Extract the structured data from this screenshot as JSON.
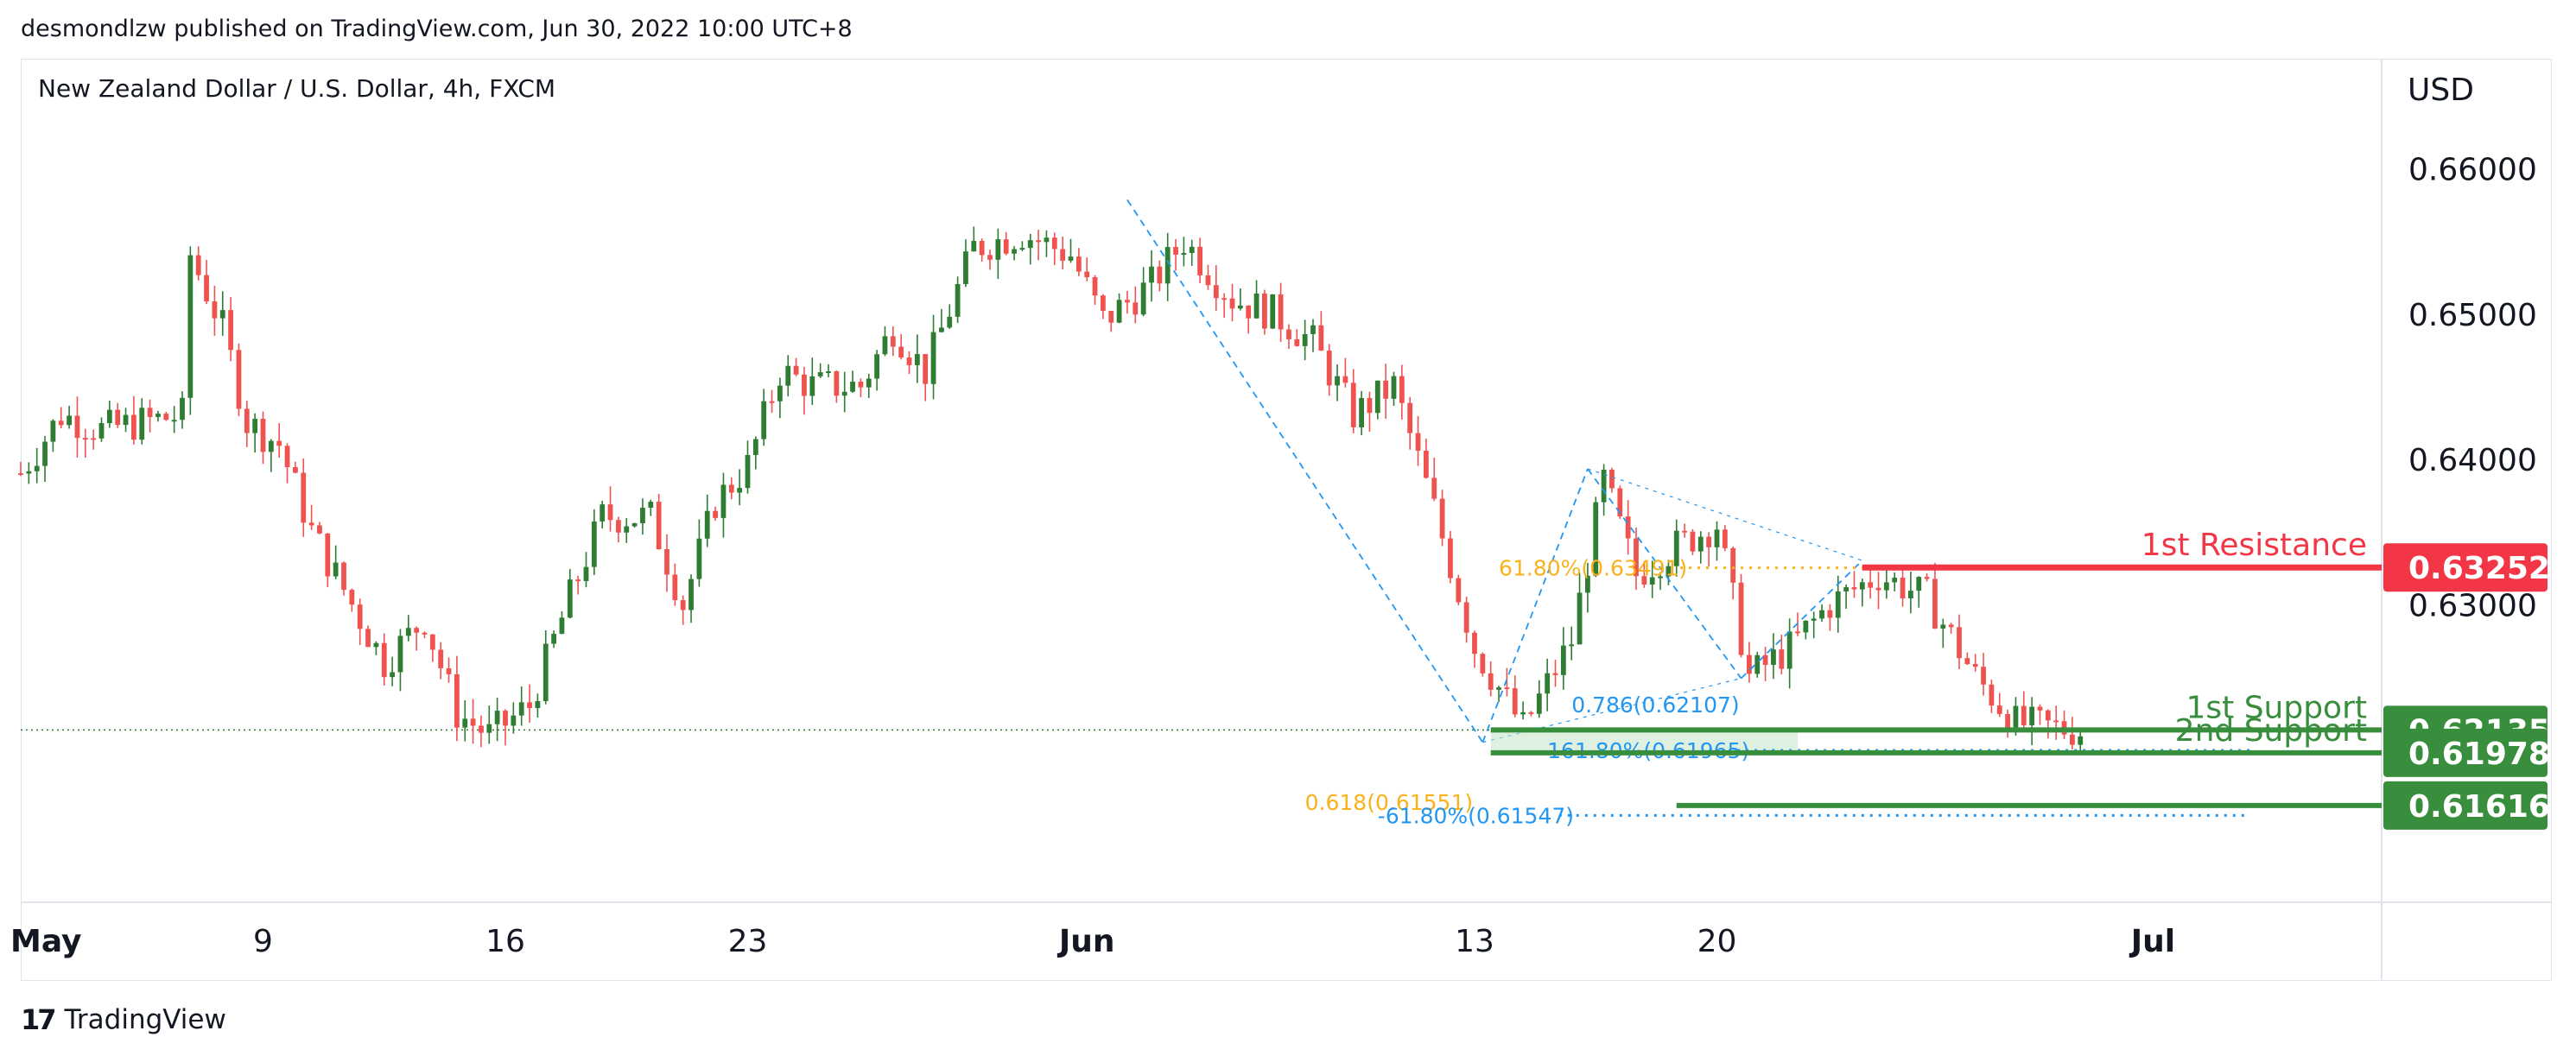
{
  "header": {
    "attribution": "desmondlzw published on TradingView.com, Jun 30, 2022 10:00 UTC+8",
    "symbol": "New Zealand Dollar / U.S. Dollar, 4h, FXCM",
    "currency": "USD"
  },
  "footer": {
    "brand_mark": "17",
    "brand": "TradingView"
  },
  "colors": {
    "bull": "#2e7d32",
    "bear": "#ef5350",
    "resistance": "#f23645",
    "support": "#388e3c",
    "fib_blue": "#2196f3",
    "fib_gold": "#f9b21c",
    "axis_text": "#131722"
  },
  "chart_data": {
    "type": "candlestick",
    "ylim": [
      0.6095,
      0.6675
    ],
    "y_ticks": [
      0.66,
      0.65,
      0.64,
      0.63
    ],
    "y_tick_labels": [
      "0.66000",
      "0.65000",
      "0.64000",
      "0.63000"
    ],
    "x_ticks": [
      {
        "label": "May",
        "candle": 0
      },
      {
        "label": "9",
        "candle": 30
      },
      {
        "label": "16",
        "candle": 60
      },
      {
        "label": "23",
        "candle": 90
      },
      {
        "label": "Jun",
        "candle": 132
      },
      {
        "label": "13",
        "candle": 180
      },
      {
        "label": "20",
        "candle": 210
      },
      {
        "label": "Jul",
        "candle": 264
      }
    ],
    "candle_count": 296,
    "path": [
      [
        0,
        0.639
      ],
      [
        5,
        0.643
      ],
      [
        10,
        0.642
      ],
      [
        15,
        0.6425
      ],
      [
        20,
        0.643
      ],
      [
        21,
        0.654
      ],
      [
        25,
        0.649
      ],
      [
        28,
        0.6425
      ],
      [
        32,
        0.641
      ],
      [
        36,
        0.635
      ],
      [
        41,
        0.63
      ],
      [
        45,
        0.626
      ],
      [
        50,
        0.629
      ],
      [
        54,
        0.6225
      ],
      [
        58,
        0.621
      ],
      [
        63,
        0.623
      ],
      [
        68,
        0.6305
      ],
      [
        72,
        0.636
      ],
      [
        78,
        0.636
      ],
      [
        82,
        0.63
      ],
      [
        86,
        0.637
      ],
      [
        90,
        0.6395
      ],
      [
        94,
        0.646
      ],
      [
        98,
        0.645
      ],
      [
        104,
        0.645
      ],
      [
        108,
        0.649
      ],
      [
        112,
        0.646
      ],
      [
        118,
        0.6545
      ],
      [
        124,
        0.6555
      ],
      [
        130,
        0.654
      ],
      [
        134,
        0.6495
      ],
      [
        140,
        0.652
      ],
      [
        144,
        0.655
      ],
      [
        150,
        0.651
      ],
      [
        155,
        0.65
      ],
      [
        160,
        0.648
      ],
      [
        165,
        0.643
      ],
      [
        170,
        0.645
      ],
      [
        175,
        0.6365
      ],
      [
        180,
        0.627
      ],
      [
        186,
        0.6215
      ],
      [
        192,
        0.6275
      ],
      [
        196,
        0.6385
      ],
      [
        200,
        0.632
      ],
      [
        205,
        0.634
      ],
      [
        210,
        0.6355
      ],
      [
        214,
        0.625
      ],
      [
        219,
        0.627
      ],
      [
        224,
        0.63
      ],
      [
        230,
        0.632
      ],
      [
        236,
        0.6305
      ],
      [
        242,
        0.625
      ],
      [
        247,
        0.6218
      ],
      [
        255,
        0.6213
      ]
    ],
    "swings": [
      {
        "candle": 137,
        "price": 0.6578
      },
      {
        "candle": 181,
        "price": 0.6205
      },
      {
        "candle": 194,
        "price": 0.6393
      },
      {
        "candle": 213,
        "price": 0.6249
      },
      {
        "candle": 228,
        "price": 0.633
      }
    ],
    "levels": [
      {
        "name": "1st Resistance",
        "price": 0.63252,
        "price_label": "0.63252",
        "start_candle": 228,
        "color": "#f23645"
      },
      {
        "name": "1st Support",
        "price": 0.62135,
        "price_label": "0.62135",
        "start_candle": 182,
        "color": "#388e3c"
      },
      {
        "name": "2nd Support",
        "price": 0.61978,
        "price_label": "0.61978",
        "start_candle": 182,
        "color": "#388e3c"
      },
      {
        "name": "",
        "price": 0.61616,
        "price_label": "0.61616",
        "start_candle": 205,
        "color": "#388e3c"
      }
    ],
    "fib_annotations": [
      {
        "text": "61.80%(0.63491)",
        "price": 0.6325,
        "candle": 183,
        "color": "#f9b21c",
        "dotted_to_candle": 238
      },
      {
        "text": "0.786(0.62107)",
        "price": 0.6231,
        "candle": 192,
        "color": "#2196f3",
        "dotted_to_candle": null
      },
      {
        "text": "161.80%(0.61965)",
        "price": 0.61995,
        "candle": 189,
        "color": "#2196f3",
        "dotted_to_candle": 276
      },
      {
        "text": "0.618(0.61551)",
        "price": 0.6164,
        "candle": 159,
        "color": "#f9b21c",
        "dotted_to_candle": null
      },
      {
        "text": "-61.80%(0.61547)",
        "price": 0.61547,
        "candle": 168,
        "color": "#2196f3",
        "dotted_to_candle": 276
      }
    ],
    "current_price_line": 0.62135
  }
}
